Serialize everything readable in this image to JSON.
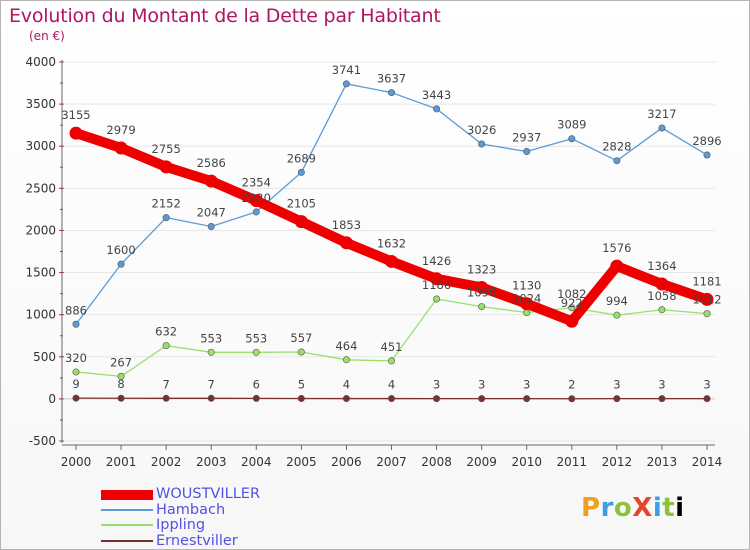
{
  "header": {
    "title": "Evolution du Montant de la Dette par Habitant",
    "unit": "(en €)"
  },
  "logo": {
    "text": "ProXiti"
  },
  "chart_data": {
    "type": "line",
    "title": "Evolution du Montant de la Dette par Habitant",
    "ylabel": "(en €)",
    "xlabel": "",
    "ylim": [
      -500,
      4000
    ],
    "yticks": [
      -500,
      0,
      500,
      1000,
      1500,
      2000,
      2500,
      3000,
      3500,
      4000
    ],
    "x": [
      "2000",
      "2001",
      "2002",
      "2003",
      "2004",
      "2005",
      "2006",
      "2007",
      "2008",
      "2009",
      "2010",
      "2011",
      "2012",
      "2013",
      "2014"
    ],
    "series": [
      {
        "name": "WOUSTVILLER",
        "color": "#ee0000",
        "values": [
          3155,
          2979,
          2755,
          2586,
          2354,
          2105,
          1853,
          1632,
          1426,
          1323,
          1130,
          922,
          1576,
          1364,
          1181
        ]
      },
      {
        "name": "Hambach",
        "color": "#5b9bd5",
        "values": [
          886,
          1600,
          2152,
          2047,
          2220,
          2689,
          3741,
          3637,
          3443,
          3026,
          2937,
          3089,
          2828,
          3217,
          2896
        ]
      },
      {
        "name": "Ippling",
        "color": "#99e06a",
        "values": [
          320,
          267,
          632,
          553,
          553,
          557,
          464,
          451,
          1186,
          1096,
          1024,
          1082,
          994,
          1058,
          1012
        ]
      },
      {
        "name": "Ernestviller",
        "color": "#7a3030",
        "values": [
          9,
          8,
          7,
          7,
          6,
          5,
          4,
          4,
          3,
          3,
          3,
          2,
          3,
          3,
          3
        ]
      }
    ]
  }
}
